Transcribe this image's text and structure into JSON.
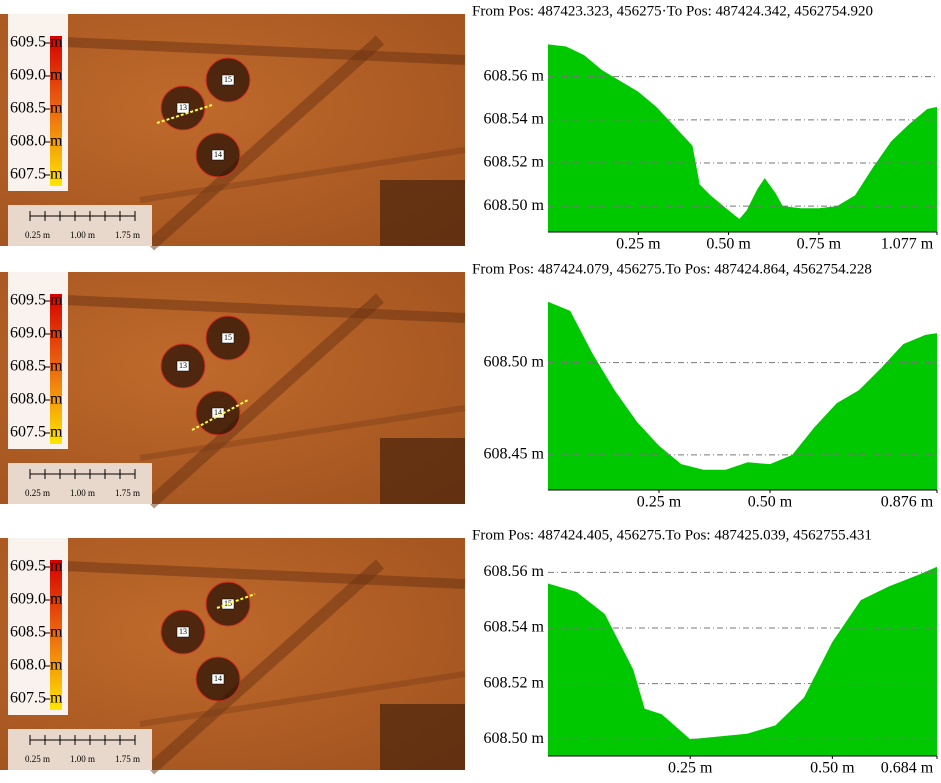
{
  "chart_data": [
    {
      "type": "area",
      "title": "From Pos: 487423.323, 456275·To Pos: 487424.342, 4562754.920",
      "color": "#00c800",
      "x": [
        0,
        0.05,
        0.1,
        0.15,
        0.2,
        0.25,
        0.3,
        0.35,
        0.4,
        0.42,
        0.45,
        0.5,
        0.53,
        0.55,
        0.58,
        0.6,
        0.63,
        0.65,
        0.7,
        0.75,
        0.8,
        0.85,
        0.9,
        0.95,
        1.0,
        1.05,
        1.077
      ],
      "values": [
        608.575,
        608.574,
        608.57,
        608.563,
        608.558,
        608.553,
        608.546,
        608.537,
        608.528,
        608.51,
        608.505,
        608.498,
        608.494,
        608.498,
        608.508,
        608.513,
        608.506,
        608.5,
        608.499,
        608.499,
        608.5,
        608.505,
        608.518,
        608.53,
        608.538,
        608.545,
        608.546
      ],
      "xlim": [
        0,
        1.077
      ],
      "ylim": [
        608.488,
        608.577
      ],
      "xticks": [
        {
          "value": 0.25,
          "label": "0.25 m"
        },
        {
          "value": 0.5,
          "label": "0.50 m"
        },
        {
          "value": 0.75,
          "label": "0.75 m"
        },
        {
          "value": 1.077,
          "label": "1.077 m"
        }
      ],
      "yticks": [
        {
          "value": 608.5,
          "label": "608.50 m"
        },
        {
          "value": 608.52,
          "label": "608.52 m"
        },
        {
          "value": 608.54,
          "label": "608.54 m"
        },
        {
          "value": 608.56,
          "label": "608.56 m"
        }
      ],
      "grid": true
    },
    {
      "type": "area",
      "title": "From Pos: 487424.079, 456275.To Pos: 487424.864, 4562754.228",
      "color": "#00c800",
      "x": [
        0,
        0.05,
        0.1,
        0.15,
        0.2,
        0.25,
        0.3,
        0.35,
        0.4,
        0.45,
        0.5,
        0.55,
        0.6,
        0.65,
        0.7,
        0.75,
        0.8,
        0.85,
        0.876
      ],
      "values": [
        608.533,
        608.528,
        608.505,
        608.485,
        608.468,
        608.455,
        608.445,
        608.442,
        608.442,
        608.446,
        608.445,
        608.45,
        608.465,
        608.478,
        608.485,
        608.497,
        608.51,
        608.515,
        608.516
      ],
      "xlim": [
        0,
        0.876
      ],
      "ylim": [
        608.431,
        608.535
      ],
      "xticks": [
        {
          "value": 0.25,
          "label": "0.25 m"
        },
        {
          "value": 0.5,
          "label": "0.50 m"
        },
        {
          "value": 0.876,
          "label": "0.876 m"
        }
      ],
      "yticks": [
        {
          "value": 608.45,
          "label": "608.45 m"
        },
        {
          "value": 608.5,
          "label": "608.50 m"
        }
      ],
      "grid": true
    },
    {
      "type": "area",
      "title": "From Pos: 487424.405, 456275.To Pos: 487425.039, 4562755.431",
      "color": "#00c800",
      "x": [
        0,
        0.05,
        0.1,
        0.15,
        0.17,
        0.2,
        0.25,
        0.3,
        0.35,
        0.4,
        0.45,
        0.5,
        0.55,
        0.6,
        0.65,
        0.684
      ],
      "values": [
        608.556,
        608.553,
        608.545,
        608.525,
        608.511,
        608.509,
        608.5,
        608.501,
        608.502,
        608.505,
        608.515,
        608.535,
        608.55,
        608.555,
        608.559,
        608.562
      ],
      "xlim": [
        0,
        0.684
      ],
      "ylim": [
        608.494,
        608.563
      ],
      "xticks": [
        {
          "value": 0.25,
          "label": "0.25 m"
        },
        {
          "value": 0.5,
          "label": "0.50 m"
        },
        {
          "value": 0.684,
          "label": "0.684 m"
        }
      ],
      "yticks": [
        {
          "value": 608.5,
          "label": "608.50 m"
        },
        {
          "value": 608.52,
          "label": "608.52 m"
        },
        {
          "value": 608.54,
          "label": "608.54 m"
        },
        {
          "value": 608.56,
          "label": "608.56 m"
        }
      ],
      "grid": true
    }
  ],
  "maps": [
    {
      "legend": [
        "609.5 m",
        "609.0 m",
        "608.5 m",
        "608.0 m",
        "607.5 m"
      ],
      "scale": [
        "0.25 m",
        "1.00 m",
        "1.75 m"
      ],
      "features": [
        "15",
        "13",
        "14"
      ]
    },
    {
      "legend": [
        "609.5 m",
        "609.0 m",
        "608.5 m",
        "608.0 m",
        "607.5 m"
      ],
      "scale": [
        "0.25 m",
        "1.00 m",
        "1.75 m"
      ],
      "features": [
        "15",
        "13",
        "14"
      ]
    },
    {
      "legend": [
        "609.5 m",
        "609.0 m",
        "608.5 m",
        "608.0 m",
        "607.5 m"
      ],
      "scale": [
        "0.25 m",
        "1.00 m",
        "1.75 m"
      ],
      "features": [
        "15",
        "13",
        "14"
      ]
    }
  ]
}
